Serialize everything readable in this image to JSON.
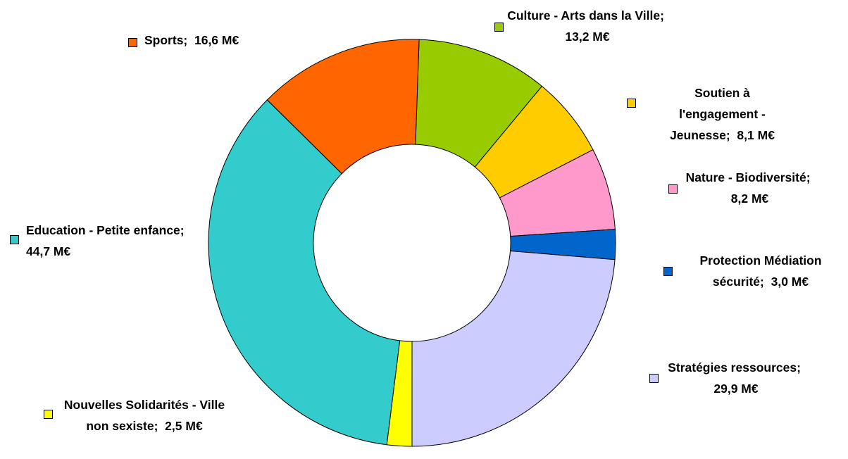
{
  "chart_data": {
    "type": "donut",
    "categories": [
      "Culture - Arts dans la Ville;",
      "Soutien à l'engagement - Jeunesse;",
      "Nature - Biodiversité;",
      "Protection Médiation sécurité;",
      "Stratégies ressources;",
      "Nouvelles Solidarités - Ville non sexiste;",
      "Education - Petite enfance;",
      "Sports;"
    ],
    "values": [
      13.2,
      8.1,
      8.2,
      3.0,
      29.9,
      2.5,
      44.7,
      16.6
    ],
    "value_labels": [
      "13,2 M€",
      "8,1 M€",
      "8,2 M€",
      "3,0 M€",
      "29,9 M€",
      "2,5 M€",
      "44,7 M€",
      "16,6 M€"
    ],
    "colors": [
      "#99cc00",
      "#ffcc00",
      "#ff99cc",
      "#0066cc",
      "#ccccff",
      "#ffff00",
      "#33cccc",
      "#ff6600"
    ]
  }
}
